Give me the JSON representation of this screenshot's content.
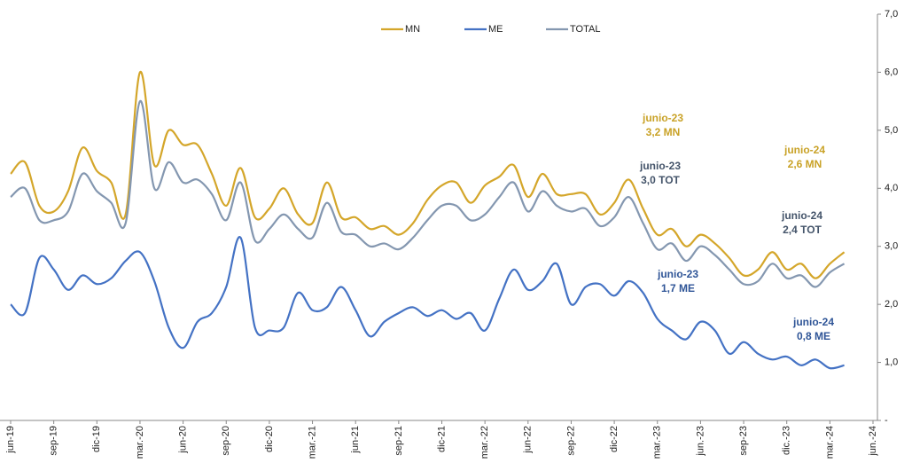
{
  "chart_data": {
    "type": "line",
    "categories": [
      "jun-19",
      null,
      null,
      "sep-19",
      null,
      null,
      "dic-19",
      null,
      null,
      "mar.-20",
      null,
      null,
      "jun-20",
      null,
      null,
      "sep-20",
      null,
      null,
      "dic-20",
      null,
      null,
      "mar.-21",
      null,
      null,
      "jun-21",
      null,
      null,
      "sep-21",
      null,
      null,
      "dic-21",
      null,
      null,
      "mar.-22",
      null,
      null,
      "jun-22",
      null,
      null,
      "sep-22",
      null,
      null,
      "dic-22",
      null,
      null,
      "mar.-23",
      null,
      null,
      "jun.-23",
      null,
      null,
      "sep-23",
      null,
      null,
      "dic.-23",
      null,
      null,
      "mar.-24",
      null,
      null,
      "jun.-24"
    ],
    "series": [
      {
        "name": "MN",
        "color": "#d4a62a",
        "values": [
          4.25,
          4.45,
          3.7,
          3.6,
          3.95,
          4.7,
          4.3,
          4.1,
          3.55,
          6.0,
          4.4,
          5.0,
          4.75,
          4.75,
          4.25,
          3.7,
          4.35,
          3.5,
          3.65,
          4.0,
          3.55,
          3.4,
          4.1,
          3.5,
          3.5,
          3.3,
          3.35,
          3.2,
          3.4,
          3.8,
          4.05,
          4.1,
          3.75,
          4.05,
          4.2,
          4.4,
          3.85,
          4.25,
          3.9,
          3.9,
          3.9,
          3.55,
          3.75,
          4.15,
          3.65,
          3.2,
          3.3,
          3.0,
          3.2,
          3.05,
          2.8,
          2.5,
          2.6,
          2.9,
          2.6,
          2.7,
          2.45,
          2.7,
          2.9,
          null,
          null
        ]
      },
      {
        "name": "ME",
        "color": "#4472c4",
        "values": [
          2.0,
          1.85,
          2.8,
          2.6,
          2.25,
          2.5,
          2.35,
          2.45,
          2.75,
          2.9,
          2.4,
          1.6,
          1.25,
          1.7,
          1.85,
          2.3,
          3.15,
          1.6,
          1.55,
          1.6,
          2.2,
          1.9,
          1.95,
          2.3,
          1.9,
          1.45,
          1.7,
          1.85,
          1.95,
          1.8,
          1.9,
          1.75,
          1.85,
          1.55,
          2.1,
          2.6,
          2.25,
          2.4,
          2.7,
          2.0,
          2.3,
          2.35,
          2.15,
          2.4,
          2.2,
          1.75,
          1.55,
          1.4,
          1.7,
          1.55,
          1.15,
          1.35,
          1.15,
          1.05,
          1.1,
          0.95,
          1.05,
          0.9,
          0.95,
          null,
          null
        ]
      },
      {
        "name": "TOTAL",
        "color": "#8497b0",
        "values": [
          3.85,
          4.0,
          3.45,
          3.45,
          3.6,
          4.25,
          3.95,
          3.75,
          3.4,
          5.5,
          4.0,
          4.45,
          4.1,
          4.15,
          3.9,
          3.45,
          4.1,
          3.1,
          3.3,
          3.55,
          3.3,
          3.15,
          3.75,
          3.25,
          3.2,
          3.0,
          3.05,
          2.95,
          3.15,
          3.45,
          3.7,
          3.7,
          3.45,
          3.55,
          3.85,
          4.1,
          3.6,
          3.95,
          3.7,
          3.6,
          3.65,
          3.35,
          3.5,
          3.85,
          3.4,
          2.95,
          3.05,
          2.75,
          3.0,
          2.85,
          2.6,
          2.35,
          2.4,
          2.7,
          2.45,
          2.5,
          2.3,
          2.55,
          2.7,
          null,
          null
        ]
      }
    ],
    "ylim": [
      0,
      7
    ],
    "yticks": [
      {
        "value": 0,
        "label": "-"
      },
      {
        "value": 1,
        "label": "1,0"
      },
      {
        "value": 2,
        "label": "2,0"
      },
      {
        "value": 3,
        "label": "3,0"
      },
      {
        "value": 4,
        "label": "4,0"
      },
      {
        "value": 5,
        "label": "5,0"
      },
      {
        "value": 6,
        "label": "6,0"
      },
      {
        "value": 7,
        "label": "7,0"
      }
    ],
    "annotations": [
      {
        "lines": [
          "junio-23",
          "3,2 MN"
        ],
        "color": "#c9a227"
      },
      {
        "lines": [
          "junio-23",
          "3,0 TOT"
        ],
        "color": "#44546a"
      },
      {
        "lines": [
          "junio-23",
          "1,7 ME"
        ],
        "color": "#2f5597"
      },
      {
        "lines": [
          "junio-24",
          "2,6 MN"
        ],
        "color": "#c9a227"
      },
      {
        "lines": [
          "junio-24",
          "2,4 TOT"
        ],
        "color": "#44546a"
      },
      {
        "lines": [
          "junio-24",
          "0,8 ME"
        ],
        "color": "#2f5597"
      }
    ],
    "legend": "top"
  }
}
